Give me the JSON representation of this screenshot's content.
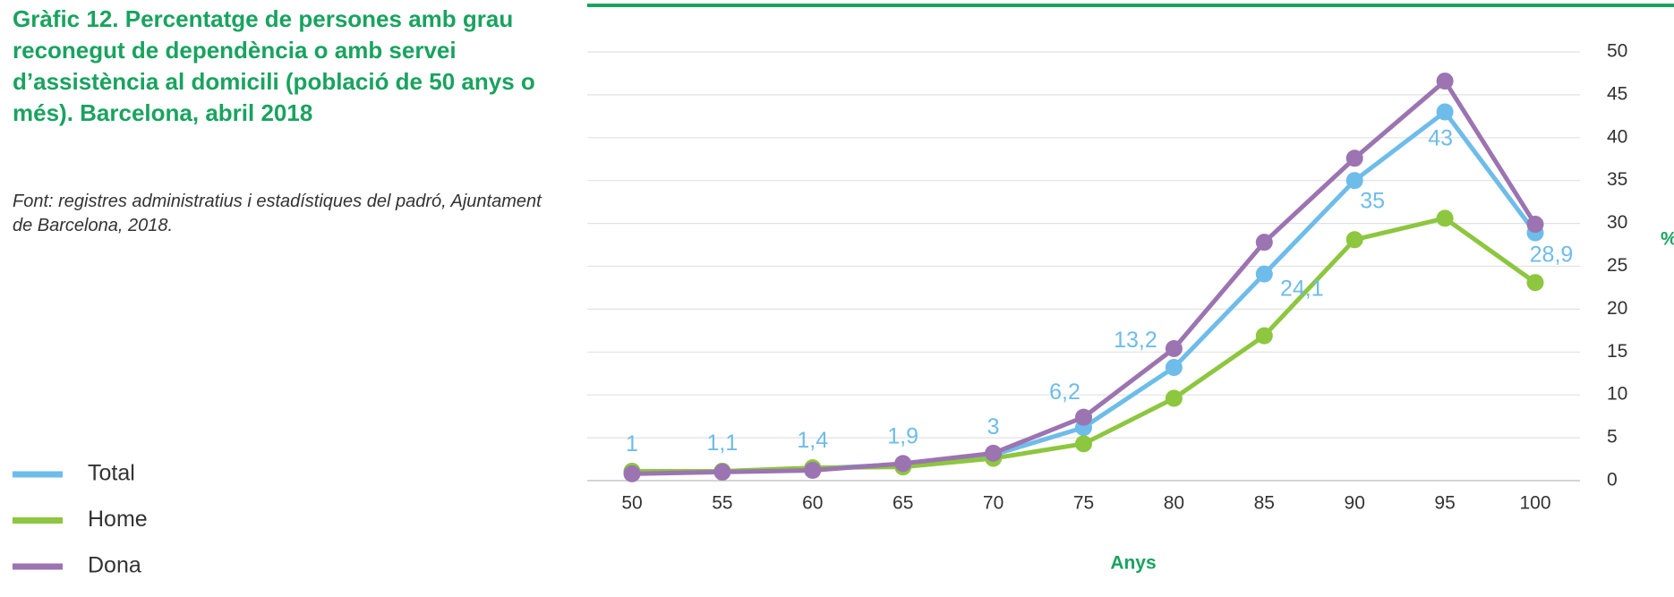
{
  "chart_data": {
    "type": "line",
    "title": "Gràfic 12. Percentatge de persones amb grau reconegut de dependència o amb servei d’assistència al domicili (població de 50 anys o més). Barcelona, abril 2018",
    "source": "Font: registres administratius i estadístiques del padró, Ajuntament de Barcelona, 2018.",
    "x_label": "Anys",
    "y_label": "%",
    "x": [
      50,
      55,
      60,
      65,
      70,
      75,
      80,
      85,
      90,
      95,
      100
    ],
    "xlim": [
      50,
      100
    ],
    "xticks": [
      50,
      55,
      60,
      65,
      70,
      75,
      80,
      85,
      90,
      95,
      100
    ],
    "ylim": [
      0,
      50
    ],
    "yticks": [
      0,
      5,
      10,
      15,
      20,
      25,
      30,
      35,
      40,
      45,
      50
    ],
    "grid": true,
    "legend": "bottom-left",
    "series": [
      {
        "name": "Total",
        "color": "#6ebce9",
        "values": [
          1,
          1.1,
          1.4,
          1.9,
          3,
          6.2,
          13.2,
          24.1,
          35,
          43,
          28.9
        ],
        "value_labels": [
          "1",
          "1,1",
          "1,4",
          "1,9",
          "3",
          "6,2",
          "13,2",
          "24,1",
          "35",
          "43",
          "28,9"
        ]
      },
      {
        "name": "Home",
        "color": "#8dc63f",
        "values": [
          1.1,
          1.1,
          1.5,
          1.6,
          2.6,
          4.3,
          9.6,
          16.9,
          28.1,
          30.6,
          23.1
        ]
      },
      {
        "name": "Dona",
        "color": "#9b74b1",
        "values": [
          0.8,
          1.0,
          1.2,
          2.0,
          3.2,
          7.4,
          15.4,
          27.8,
          37.6,
          46.6,
          29.9
        ]
      }
    ]
  }
}
